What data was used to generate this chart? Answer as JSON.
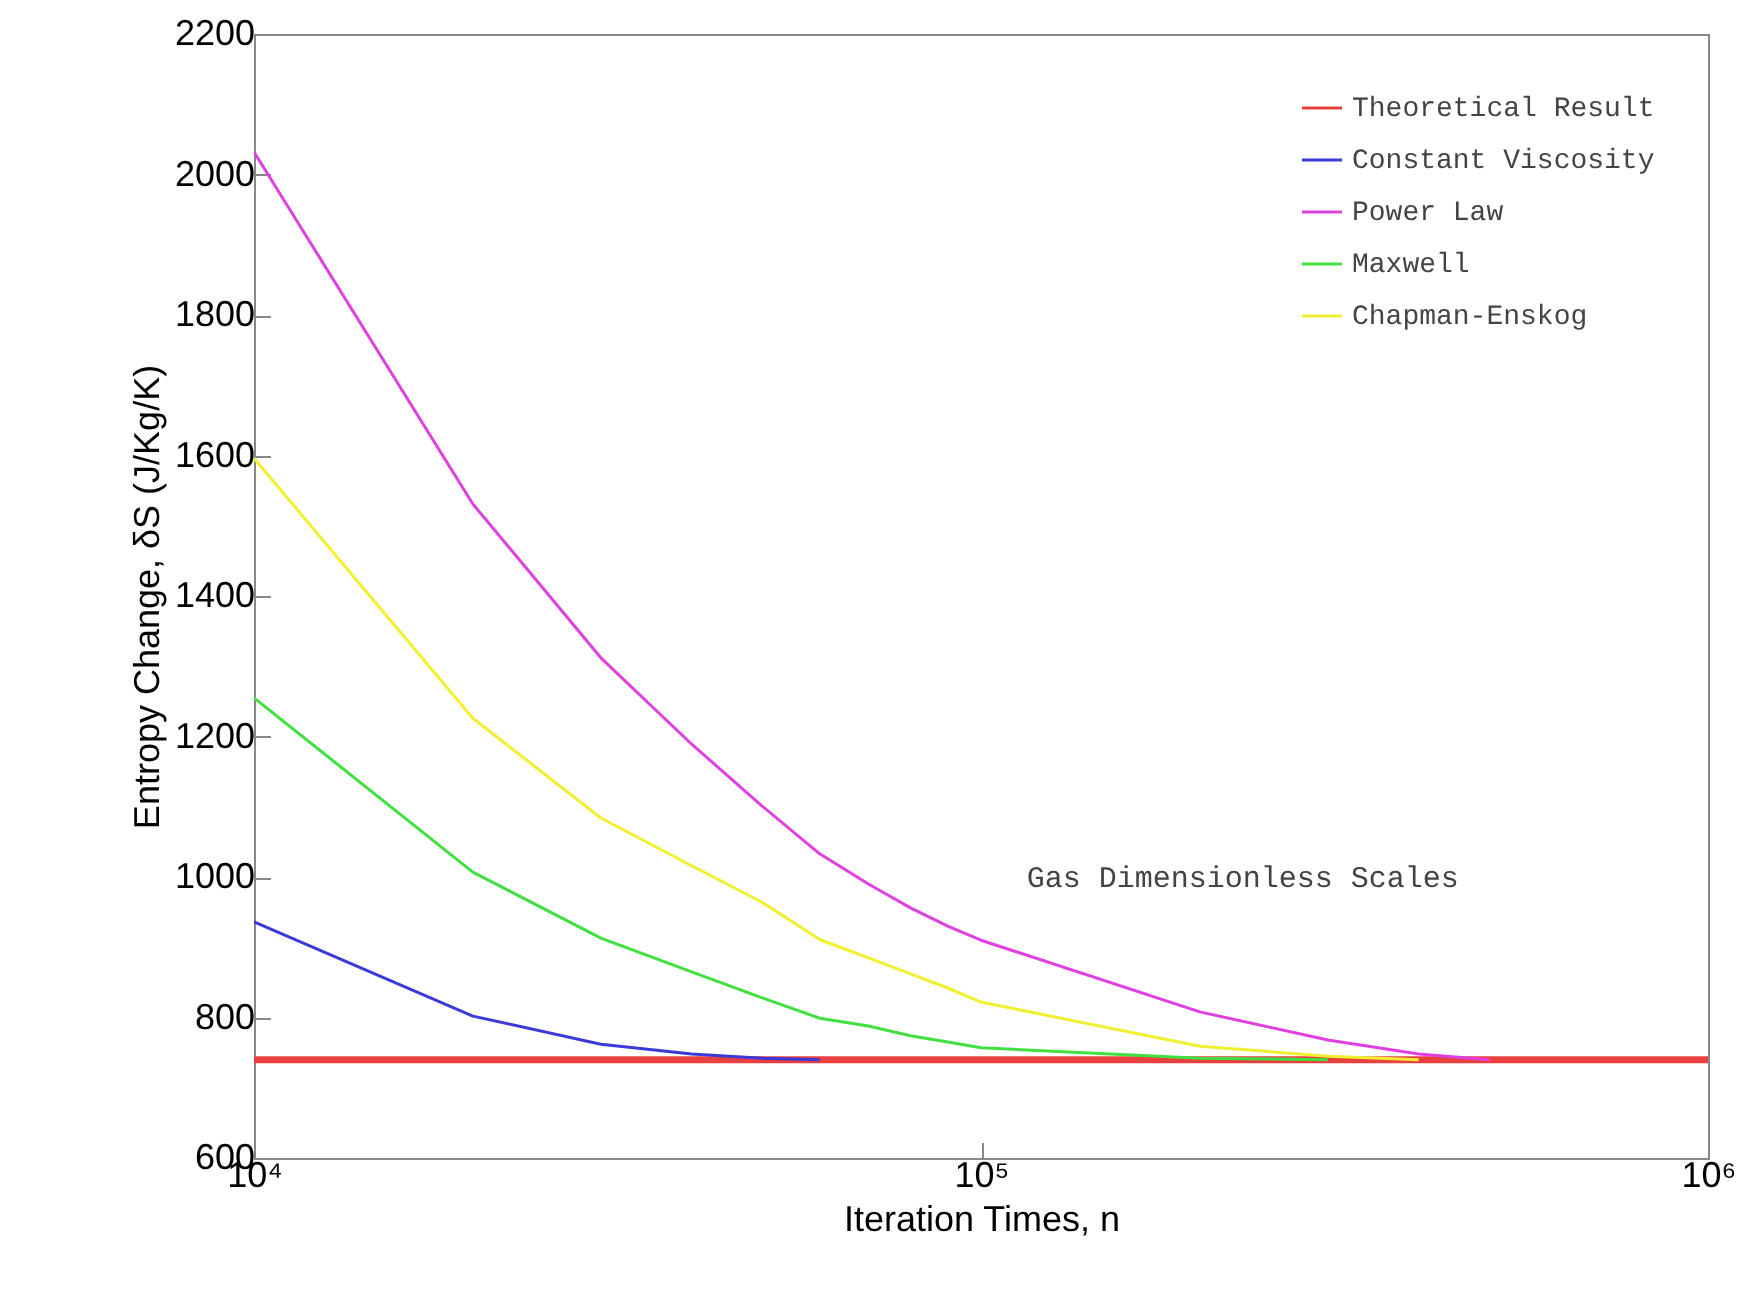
{
  "chart_data": {
    "type": "line",
    "xlabel": "Iteration Times, n",
    "ylabel": "Entropy Change, δS (J/Kg/K)",
    "x": [
      10000,
      20000,
      30000,
      40000,
      50000,
      60000,
      70000,
      80000,
      90000,
      100000,
      200000,
      300000,
      400000,
      500000,
      600000,
      700000,
      800000,
      900000,
      1000000
    ],
    "series": [
      {
        "name": "Theoretical Result",
        "color": "#e8403f",
        "values": [
          740,
          740,
          740,
          740,
          740,
          740,
          740,
          740,
          740,
          740,
          740,
          740,
          740,
          740,
          740,
          740,
          740,
          740,
          740
        ]
      },
      {
        "name": "Constant Viscosity",
        "color": "#3a3ad8",
        "values": [
          936,
          802,
          762,
          748,
          742,
          740,
          null,
          null,
          null,
          null,
          null,
          null,
          null,
          null,
          null,
          null,
          null,
          null,
          null
        ]
      },
      {
        "name": "Power Law",
        "color": "#e040e0",
        "values": [
          2032,
          1531,
          1312,
          1189,
          1101,
          1033,
          990,
          956,
          930,
          910,
          808,
          768,
          748,
          740,
          null,
          null,
          null,
          null,
          null
        ]
      },
      {
        "name": "Maxwell",
        "color": "#40e040",
        "values": [
          1255,
          1007,
          913,
          865,
          828,
          799,
          788,
          774,
          765,
          757,
          742,
          740,
          null,
          null,
          null,
          null,
          null,
          null,
          null
        ]
      },
      {
        "name": "Chapman-Enskog",
        "color": "#f0f030",
        "values": [
          1596,
          1226,
          1084,
          1016,
          964,
          911,
          885,
          862,
          842,
          822,
          759,
          745,
          740,
          null,
          null,
          null,
          null,
          null,
          null
        ]
      }
    ],
    "xlim": [
      10000,
      1000000
    ],
    "ylim": [
      600,
      2200
    ],
    "xticks": [
      {
        "value": 10000,
        "label": "10⁴"
      },
      {
        "value": 100000,
        "label": "10⁵"
      },
      {
        "value": 1000000,
        "label": "10⁶"
      }
    ],
    "yticks": [
      600,
      800,
      1000,
      1200,
      1400,
      1600,
      1800,
      2000,
      2200
    ],
    "log": "x",
    "grid": false,
    "legend": "top right",
    "marker": "none",
    "line_style": "solid",
    "annotations": [
      "Gas Dimensionless Scales"
    ]
  }
}
